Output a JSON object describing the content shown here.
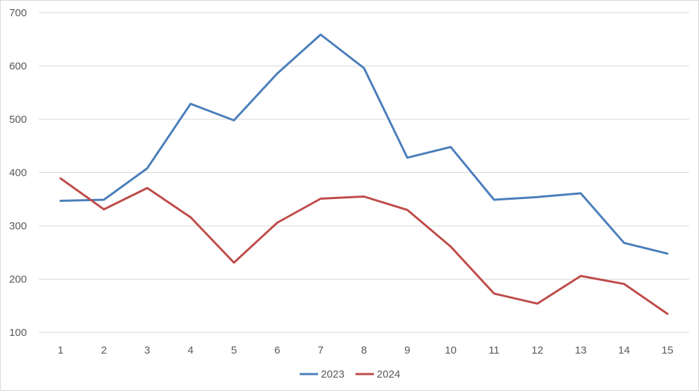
{
  "chart_data": {
    "type": "line",
    "x": [
      1,
      2,
      3,
      4,
      5,
      6,
      7,
      8,
      9,
      10,
      11,
      12,
      13,
      14,
      15
    ],
    "ylim": [
      100,
      700
    ],
    "yticks": [
      100,
      200,
      300,
      400,
      500,
      600,
      700
    ],
    "grid": true,
    "legend_position": "bottom",
    "series": [
      {
        "name": "2023",
        "color": "#4a7ebb",
        "values": [
          347,
          349,
          408,
          529,
          498,
          586,
          659,
          596,
          428,
          448,
          349,
          354,
          361,
          268,
          248
        ]
      },
      {
        "name": "2024",
        "color": "#be4b48",
        "values": [
          389,
          331,
          371,
          316,
          231,
          306,
          351,
          355,
          330,
          261,
          173,
          154,
          206,
          191,
          135
        ]
      }
    ]
  }
}
